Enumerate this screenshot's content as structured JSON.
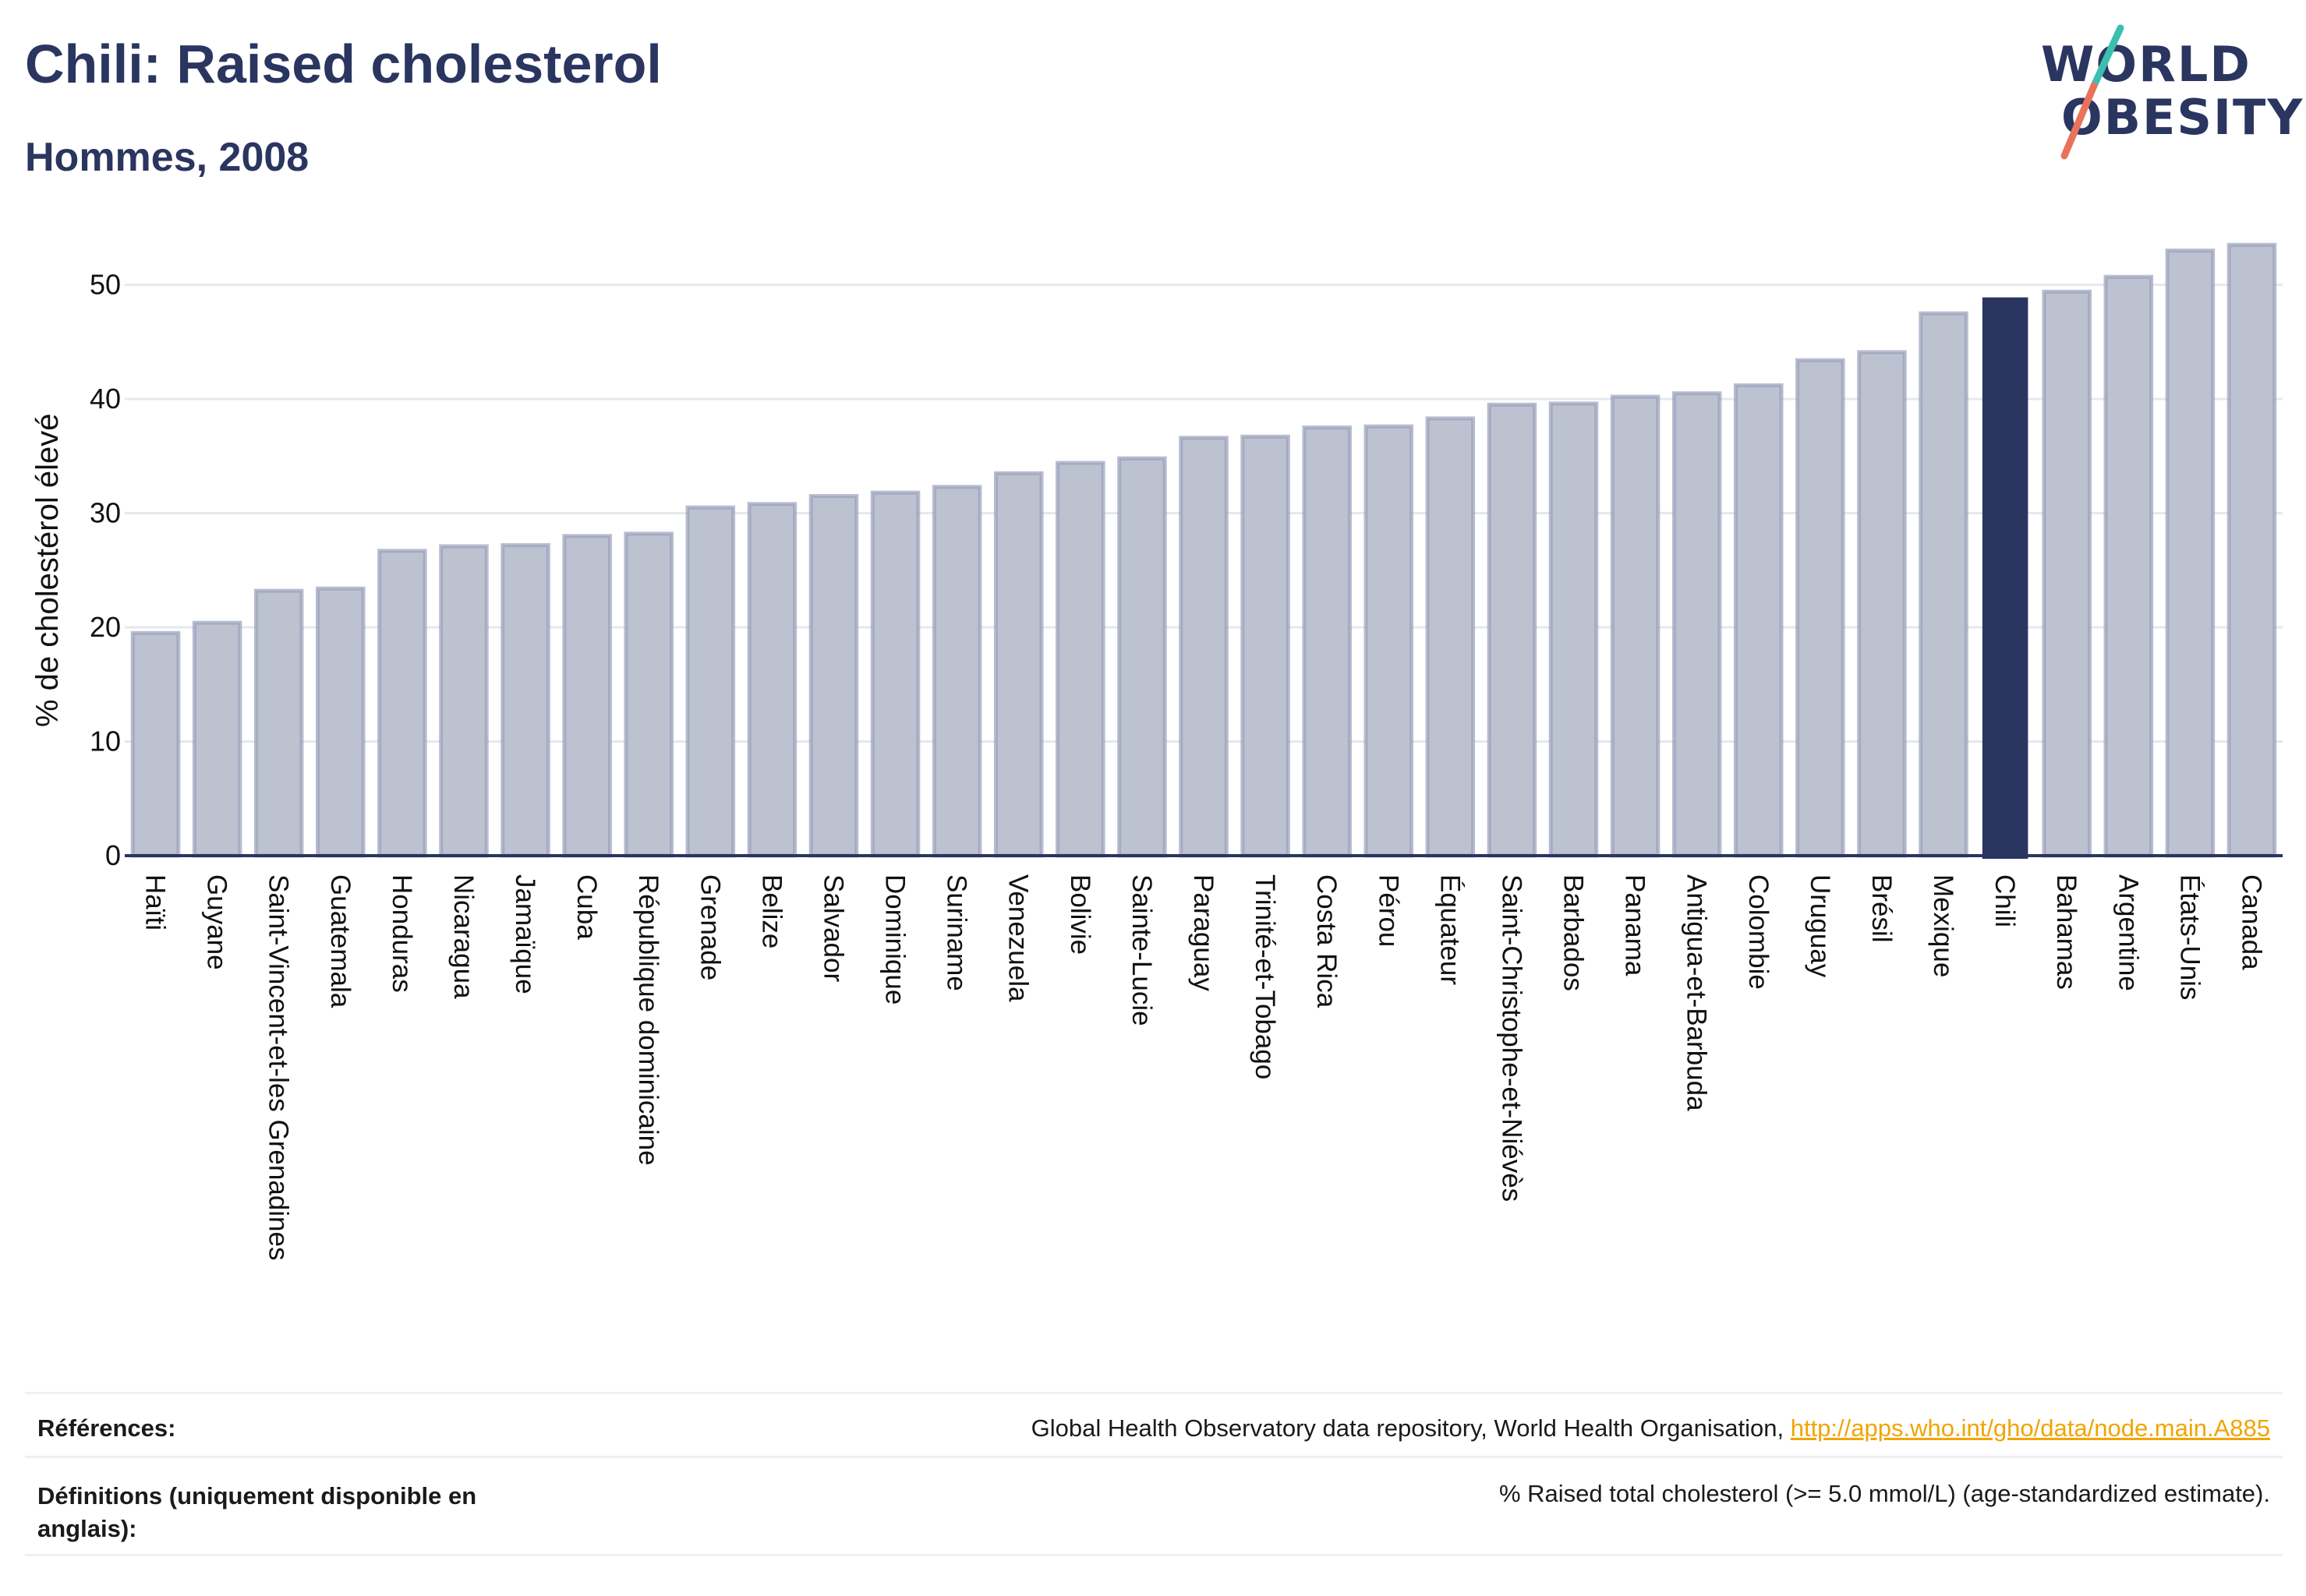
{
  "header": {
    "title": "Chili: Raised cholesterol",
    "subtitle": "Hommes, 2008"
  },
  "logo": {
    "line1": "WORLD",
    "line2": "OBESITY",
    "colors": {
      "text": "#2a3560",
      "slash_top": "#3bbfb0",
      "slash_bottom": "#e8735a"
    }
  },
  "colors": {
    "bar": "#bdc2d0",
    "bar_border": "#9aa0bc",
    "highlight": "#2a3560",
    "grid": "#e6e8ef",
    "axis": "#2a3560",
    "link": "#f0a500"
  },
  "chart_data": {
    "type": "bar",
    "ylabel": "% de cholestérol élevé",
    "ylim": [
      0,
      55
    ],
    "yticks": [
      0,
      10,
      20,
      30,
      40,
      50
    ],
    "grid": true,
    "highlight": "Chili",
    "categories": [
      "Haïti",
      "Guyane",
      "Saint-Vincent-et-les Grenadines",
      "Guatemala",
      "Honduras",
      "Nicaragua",
      "Jamaïque",
      "Cuba",
      "République dominicaine",
      "Grenade",
      "Belize",
      "Salvador",
      "Dominique",
      "Suriname",
      "Venezuela",
      "Bolivie",
      "Sainte-Lucie",
      "Paraguay",
      "Trinité-et-Tobago",
      "Costa Rica",
      "Pérou",
      "Équateur",
      "Saint-Christophe-et-Niévès",
      "Barbados",
      "Panama",
      "Antigua-et-Barbuda",
      "Colombie",
      "Uruguay",
      "Brésil",
      "Mexique",
      "Chili",
      "Bahamas",
      "Argentine",
      "États-Unis",
      "Canada"
    ],
    "values": [
      19.5,
      20.4,
      23.2,
      23.4,
      26.7,
      27.1,
      27.2,
      28.0,
      28.2,
      30.5,
      30.8,
      31.5,
      31.8,
      32.3,
      33.5,
      34.4,
      34.8,
      36.6,
      36.7,
      37.5,
      37.6,
      38.3,
      39.5,
      39.6,
      40.2,
      40.5,
      41.2,
      43.4,
      44.1,
      47.5,
      48.9,
      49.4,
      50.7,
      53.0,
      53.5
    ]
  },
  "footer": {
    "references_label": "Références:",
    "references_text": "Global Health Observatory data repository, World Health Organisation, ",
    "references_link": "http://apps.who.int/gho/data/node.main.A885",
    "definitions_label_1": "Définitions (uniquement disponible en",
    "definitions_label_2": "anglais):",
    "definitions_text": "% Raised total cholesterol (>= 5.0 mmol/L) (age-standardized estimate)."
  }
}
